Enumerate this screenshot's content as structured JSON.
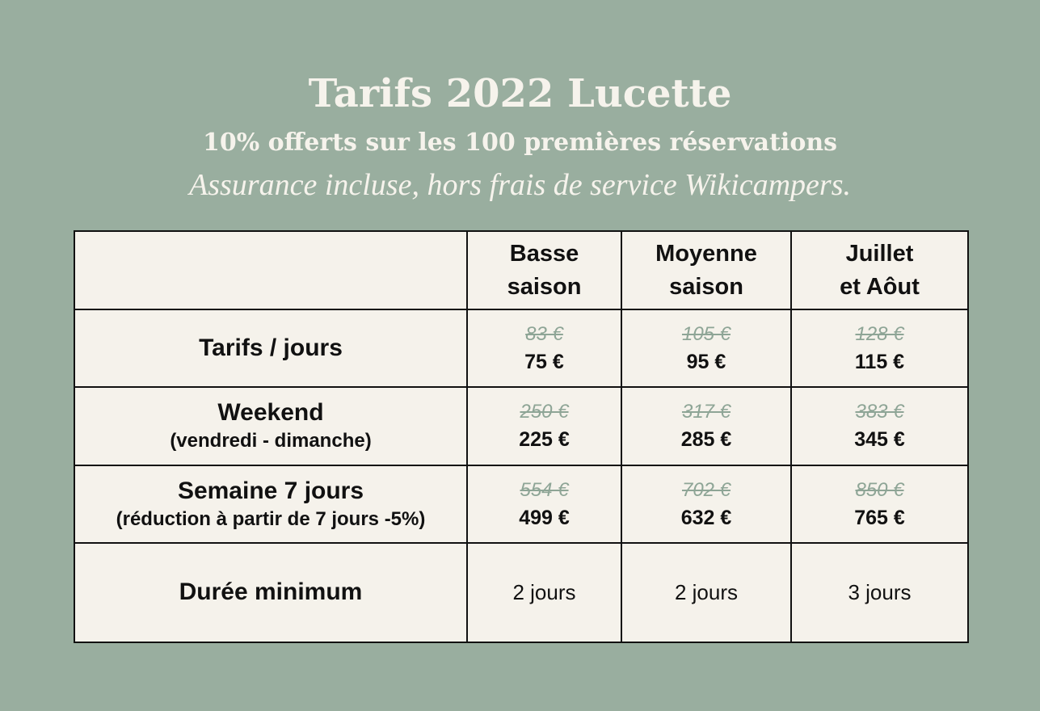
{
  "header": {
    "title": "Tarifs 2022 Lucette",
    "subtitle": "10% offerts sur les 100 premières réservations",
    "note": "Assurance incluse, hors frais de service Wikicampers."
  },
  "table": {
    "columns": [
      {
        "line1": "Basse",
        "line2": "saison"
      },
      {
        "line1": "Moyenne",
        "line2": "saison"
      },
      {
        "line1": "Juillet",
        "line2": "et Aôut"
      }
    ],
    "rows": [
      {
        "title": "Tarifs / jours",
        "sub": "",
        "prices": [
          {
            "old": "83 €",
            "new": "75 €"
          },
          {
            "old": "105 €",
            "new": "95 €"
          },
          {
            "old": "128 €",
            "new": "115 €"
          }
        ]
      },
      {
        "title": "Weekend",
        "sub": "(vendredi - dimanche)",
        "prices": [
          {
            "old": "250 €",
            "new": "225 €"
          },
          {
            "old": "317 €",
            "new": "285 €"
          },
          {
            "old": "383 €",
            "new": "345 €"
          }
        ]
      },
      {
        "title": "Semaine 7 jours",
        "sub": "(réduction à partir de 7 jours -5%)",
        "prices": [
          {
            "old": "554 €",
            "new": "499 €"
          },
          {
            "old": "702 €",
            "new": "632 €"
          },
          {
            "old": "850 €",
            "new": "765 €"
          }
        ]
      }
    ],
    "minimum": {
      "title": "Durée minimum",
      "values": [
        "2 jours",
        "2 jours",
        "3 jours"
      ]
    }
  },
  "colors": {
    "background": "#99ae9f",
    "table_bg": "#f5f2eb",
    "header_text": "#f6f3ec",
    "old_price": "#8ea596"
  }
}
